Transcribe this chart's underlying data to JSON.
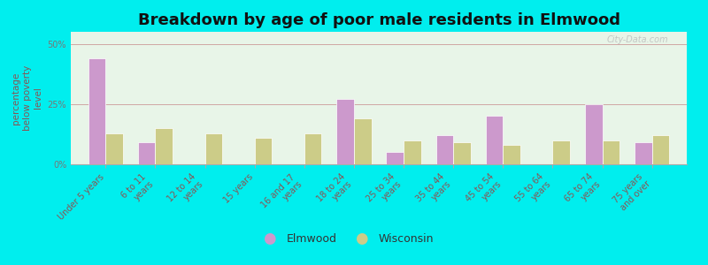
{
  "title": "Breakdown by age of poor male residents in Elmwood",
  "categories": [
    "Under 5 years",
    "6 to 11\nyears",
    "12 to 14\nyears",
    "15 years",
    "16 and 17\nyears",
    "18 to 24\nyears",
    "25 to 34\nyears",
    "35 to 44\nyears",
    "45 to 54\nyears",
    "55 to 64\nyears",
    "65 to 74\nyears",
    "75 years\nand over"
  ],
  "xtick_labels": [
    "Under 5 years",
    "6 to 11  years",
    "12 to 14  years",
    "15 years",
    "16 and 17  years",
    "18 to 24  years",
    "25 to 34  years",
    "35 to 44  years",
    "45 to 54  years",
    "55 to 64  years",
    "65 to 74  years",
    "75 years  and over"
  ],
  "elmwood": [
    44,
    9,
    0,
    0,
    0,
    27,
    5,
    12,
    20,
    0,
    25,
    9
  ],
  "wisconsin": [
    13,
    15,
    13,
    11,
    13,
    19,
    10,
    9,
    8,
    10,
    10,
    12
  ],
  "elmwood_color": "#cc99cc",
  "wisconsin_color": "#cccc88",
  "background_color": "#00eeee",
  "plot_bg_color": "#e8f5e8",
  "ylabel": "percentage\nbelow poverty\nlevel",
  "ylim": [
    0,
    55
  ],
  "yticks": [
    0,
    25,
    50
  ],
  "ytick_labels": [
    "0%",
    "25%",
    "50%"
  ],
  "bar_width": 0.35,
  "title_fontsize": 13,
  "tick_label_fontsize": 7,
  "ylabel_fontsize": 7.5,
  "legend_elmwood": "Elmwood",
  "legend_wisconsin": "Wisconsin",
  "grid_color": "#cc9999",
  "tick_label_color": "#885555",
  "ylabel_color": "#885555"
}
